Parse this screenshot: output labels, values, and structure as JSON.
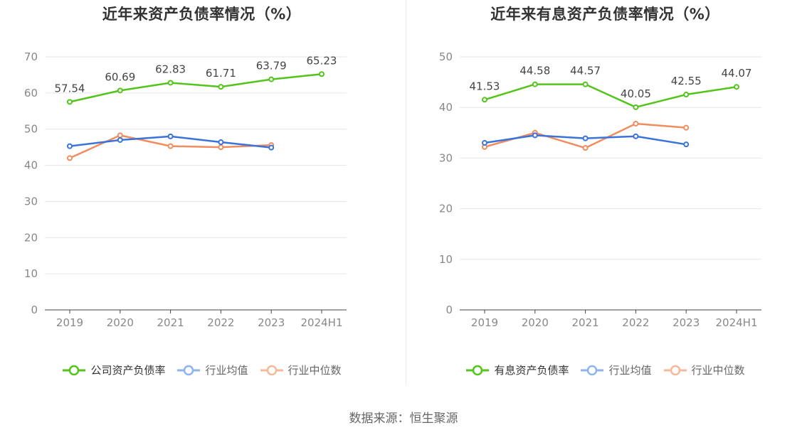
{
  "source_text": "数据来源：恒生聚源",
  "chart_data": [
    {
      "type": "line",
      "title": "近年来资产负债率情况（%）",
      "categories": [
        "2019",
        "2020",
        "2021",
        "2022",
        "2023",
        "2024H1"
      ],
      "yticks": [
        "0",
        "10",
        "20",
        "30",
        "40",
        "50",
        "60",
        "70"
      ],
      "ylim": [
        0,
        70
      ],
      "grid": true,
      "legend_placement": "bottom",
      "series": [
        {
          "name": "公司资产负债率",
          "color": "#52c41a",
          "legend_color": "#52c41a",
          "values": [
            57.54,
            60.69,
            62.83,
            61.71,
            63.79,
            65.23
          ],
          "labels": [
            "57.54",
            "60.69",
            "62.83",
            "61.71",
            "63.79",
            "65.23"
          ]
        },
        {
          "name": "行业均值",
          "color": "#3a73d9",
          "legend_color": "#8fb3f0",
          "values": [
            45.3,
            47.0,
            48.0,
            46.4,
            44.9,
            null
          ]
        },
        {
          "name": "行业中位数",
          "color": "#f08c5e",
          "legend_color": "#f5b89a",
          "values": [
            42.0,
            48.3,
            45.3,
            45.0,
            45.6,
            null
          ]
        }
      ]
    },
    {
      "type": "line",
      "title": "近年来有息资产负债率情况（%）",
      "categories": [
        "2019",
        "2020",
        "2021",
        "2022",
        "2023",
        "2024H1"
      ],
      "yticks": [
        "0",
        "10",
        "20",
        "30",
        "40",
        "50"
      ],
      "ylim": [
        0,
        50
      ],
      "grid": true,
      "legend_placement": "bottom",
      "series": [
        {
          "name": "有息资产负债率",
          "color": "#52c41a",
          "legend_color": "#52c41a",
          "values": [
            41.53,
            44.58,
            44.57,
            40.05,
            42.55,
            44.07
          ],
          "labels": [
            "41.53",
            "44.58",
            "44.57",
            "40.05",
            "42.55",
            "44.07"
          ]
        },
        {
          "name": "行业均值",
          "color": "#3a73d9",
          "legend_color": "#8fb3f0",
          "values": [
            33.0,
            34.5,
            33.9,
            34.3,
            32.7,
            null
          ]
        },
        {
          "name": "行业中位数",
          "color": "#f08c5e",
          "legend_color": "#f5b89a",
          "values": [
            32.2,
            35.0,
            32.0,
            36.8,
            36.0,
            null
          ]
        }
      ]
    }
  ]
}
